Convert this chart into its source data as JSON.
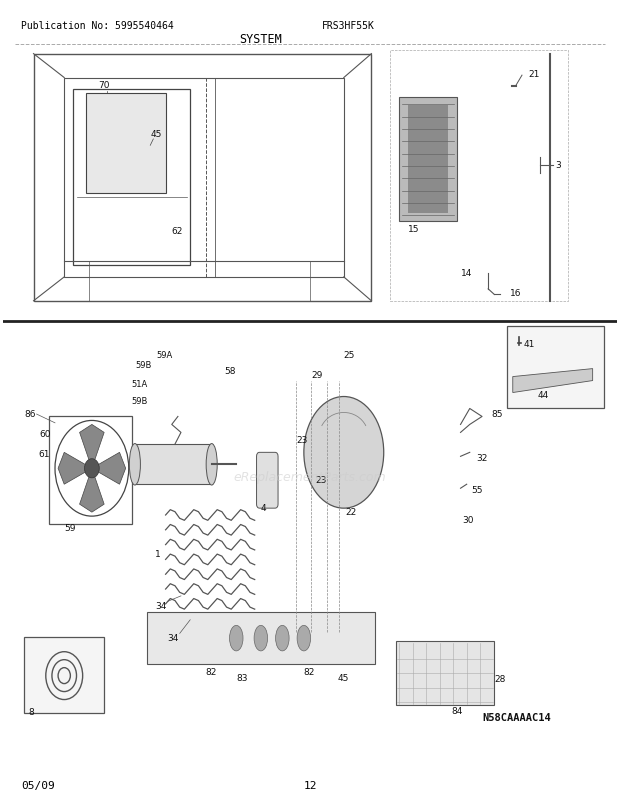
{
  "title": "SYSTEM",
  "header_left": "Publication No: 5995540464",
  "header_right": "FRS3HF55K",
  "footer_left": "05/09",
  "footer_center": "12",
  "bg_color": "#ffffff",
  "text_color": "#000000",
  "fig_width": 6.2,
  "fig_height": 8.03,
  "dpi": 100,
  "watermark": "eReplacementParts.com",
  "diagram_code": "N58CAAAAC14"
}
